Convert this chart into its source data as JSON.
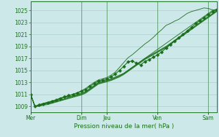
{
  "title": "Pression niveau de la mer( hPa )",
  "background_color": "#cce8e8",
  "plot_bg_color": "#cce8e8",
  "grid_color": "#aacece",
  "line_color": "#1a6e1a",
  "ylim": [
    1008.0,
    1026.5
  ],
  "yticks": [
    1009,
    1011,
    1013,
    1015,
    1017,
    1019,
    1021,
    1023,
    1025
  ],
  "day_labels": [
    "Mer",
    "Dim",
    "Jeu",
    "Ven",
    "Sam"
  ],
  "day_x": [
    0,
    72,
    108,
    180,
    252
  ],
  "xlim": [
    0,
    264
  ],
  "num_points": 45,
  "lines": [
    {
      "x": [
        0,
        6,
        12,
        18,
        24,
        30,
        36,
        42,
        48,
        54,
        60,
        66,
        72,
        78,
        84,
        90,
        96,
        102,
        108,
        114,
        120,
        126,
        132,
        138,
        144,
        150,
        156,
        162,
        168,
        174,
        180,
        186,
        192,
        198,
        204,
        210,
        216,
        222,
        228,
        234,
        240,
        246,
        252,
        258,
        264
      ],
      "y": [
        1011.0,
        1009.0,
        1009.2,
        1009.5,
        1009.6,
        1009.8,
        1010.0,
        1010.3,
        1010.5,
        1010.6,
        1010.8,
        1011.0,
        1011.2,
        1011.5,
        1012.0,
        1012.5,
        1013.0,
        1013.2,
        1013.4,
        1013.6,
        1013.9,
        1014.2,
        1014.5,
        1015.0,
        1015.5,
        1016.0,
        1016.5,
        1017.0,
        1017.5,
        1018.0,
        1018.5,
        1019.0,
        1019.5,
        1020.0,
        1020.5,
        1021.0,
        1021.5,
        1022.0,
        1022.5,
        1023.0,
        1023.5,
        1024.0,
        1024.5,
        1025.0,
        1025.2
      ],
      "marker": false
    },
    {
      "x": [
        0,
        6,
        12,
        18,
        24,
        30,
        36,
        42,
        48,
        54,
        60,
        66,
        72,
        78,
        84,
        90,
        96,
        102,
        108,
        114,
        120,
        126,
        132,
        138,
        144,
        150,
        156,
        162,
        168,
        174,
        180,
        186,
        192,
        198,
        204,
        210,
        216,
        222,
        228,
        234,
        240,
        246,
        252,
        258,
        264
      ],
      "y": [
        1011.0,
        1009.0,
        1009.2,
        1009.4,
        1009.5,
        1009.7,
        1009.9,
        1010.1,
        1010.3,
        1010.5,
        1010.7,
        1010.9,
        1011.1,
        1011.4,
        1011.9,
        1012.4,
        1012.9,
        1013.1,
        1013.3,
        1013.5,
        1013.8,
        1014.1,
        1014.5,
        1015.0,
        1015.5,
        1016.0,
        1016.5,
        1017.0,
        1017.4,
        1017.8,
        1018.2,
        1018.6,
        1019.0,
        1019.5,
        1020.0,
        1020.5,
        1021.0,
        1021.5,
        1022.0,
        1022.5,
        1023.0,
        1023.5,
        1024.0,
        1024.5,
        1025.0
      ],
      "marker": false
    },
    {
      "x": [
        0,
        6,
        12,
        18,
        24,
        30,
        36,
        42,
        48,
        54,
        60,
        66,
        72,
        78,
        84,
        90,
        96,
        102,
        108,
        114,
        120,
        126,
        132,
        138,
        144,
        150,
        156,
        162,
        168,
        174,
        180,
        186,
        192,
        198,
        204,
        210,
        216,
        222,
        228,
        234,
        240,
        246,
        252,
        258,
        264
      ],
      "y": [
        1011.0,
        1009.0,
        1009.1,
        1009.3,
        1009.4,
        1009.6,
        1009.8,
        1010.0,
        1010.2,
        1010.4,
        1010.6,
        1010.8,
        1011.0,
        1011.3,
        1011.8,
        1012.3,
        1012.8,
        1013.0,
        1013.2,
        1013.4,
        1013.7,
        1014.0,
        1014.4,
        1014.9,
        1015.4,
        1015.9,
        1016.4,
        1016.9,
        1017.3,
        1017.7,
        1018.1,
        1018.5,
        1018.9,
        1019.4,
        1019.9,
        1020.4,
        1020.9,
        1021.4,
        1021.9,
        1022.4,
        1022.9,
        1023.4,
        1023.9,
        1024.4,
        1024.9
      ],
      "marker": false
    },
    {
      "x": [
        0,
        6,
        12,
        18,
        24,
        30,
        36,
        42,
        48,
        54,
        60,
        66,
        72,
        78,
        84,
        90,
        96,
        102,
        108,
        114,
        120,
        126,
        132,
        138,
        144,
        150,
        156,
        162,
        168,
        174,
        180,
        186,
        192,
        198,
        204,
        210,
        216,
        222,
        228,
        234,
        240,
        246,
        252,
        258,
        264
      ],
      "y": [
        1011.0,
        1009.0,
        1009.0,
        1009.2,
        1009.3,
        1009.5,
        1009.7,
        1009.9,
        1010.1,
        1010.3,
        1010.5,
        1010.7,
        1010.9,
        1011.2,
        1011.7,
        1012.2,
        1012.7,
        1012.9,
        1013.1,
        1013.3,
        1013.6,
        1013.9,
        1014.3,
        1014.8,
        1015.3,
        1015.8,
        1016.3,
        1016.8,
        1017.2,
        1017.6,
        1018.0,
        1018.4,
        1018.8,
        1019.3,
        1019.8,
        1020.3,
        1020.8,
        1021.3,
        1021.8,
        1022.3,
        1022.8,
        1023.3,
        1023.8,
        1024.3,
        1024.8
      ],
      "marker": false
    },
    {
      "x": [
        0,
        6,
        12,
        18,
        24,
        30,
        36,
        42,
        48,
        54,
        60,
        66,
        72,
        78,
        84,
        90,
        96,
        102,
        108,
        114,
        120,
        126,
        132,
        138,
        144,
        150,
        156,
        162,
        168,
        174,
        180,
        186,
        192,
        198,
        204,
        210,
        216,
        222,
        228,
        234,
        240,
        246,
        252,
        258,
        264
      ],
      "y": [
        1011.0,
        1009.0,
        1009.3,
        1009.5,
        1009.7,
        1009.9,
        1010.1,
        1010.4,
        1010.6,
        1010.8,
        1011.0,
        1011.3,
        1011.6,
        1012.0,
        1012.5,
        1013.0,
        1013.4,
        1013.6,
        1013.8,
        1014.2,
        1014.7,
        1015.5,
        1016.3,
        1017.1,
        1017.6,
        1018.2,
        1018.8,
        1019.4,
        1019.9,
        1020.5,
        1021.2,
        1021.8,
        1022.5,
        1022.8,
        1023.2,
        1023.5,
        1024.0,
        1024.5,
        1024.8,
        1025.0,
        1025.2,
        1025.4,
        1025.3,
        1025.1,
        1025.0
      ],
      "marker": false
    },
    {
      "x": [
        0,
        6,
        12,
        18,
        24,
        30,
        36,
        42,
        48,
        54,
        60,
        66,
        72,
        78,
        84,
        90,
        96,
        102,
        108,
        114,
        120,
        126,
        132,
        138,
        144,
        150,
        156,
        162,
        168,
        174,
        180,
        186,
        192,
        198,
        204,
        210,
        216,
        222,
        228,
        234,
        240,
        246,
        252,
        258,
        264
      ],
      "y": [
        1011.0,
        1009.0,
        1009.2,
        1009.4,
        1009.6,
        1009.8,
        1010.0,
        1010.3,
        1010.6,
        1010.8,
        1011.0,
        1011.2,
        1011.5,
        1011.8,
        1012.3,
        1012.8,
        1013.2,
        1013.4,
        1013.6,
        1013.9,
        1014.4,
        1015.0,
        1015.7,
        1016.4,
        1016.6,
        1016.2,
        1015.9,
        1016.5,
        1016.8,
        1017.2,
        1017.6,
        1018.1,
        1018.7,
        1019.3,
        1019.9,
        1020.5,
        1021.0,
        1021.6,
        1022.2,
        1022.8,
        1023.3,
        1023.8,
        1024.3,
        1024.8,
        1025.1
      ],
      "marker": true,
      "markersize": 2.5
    }
  ]
}
